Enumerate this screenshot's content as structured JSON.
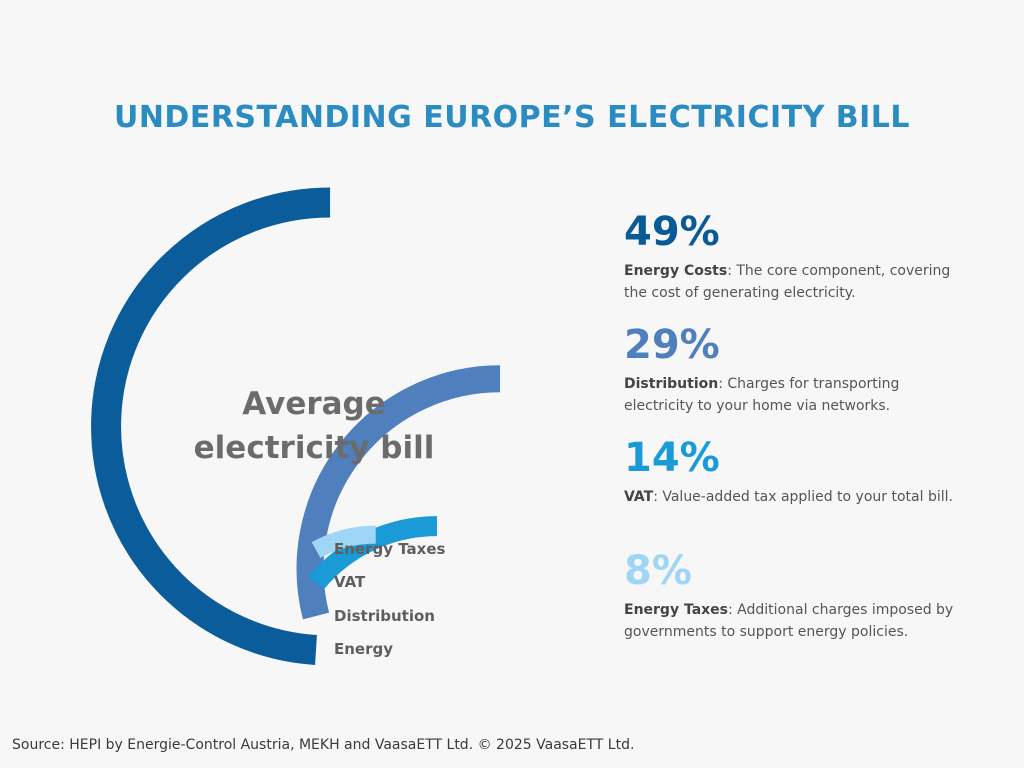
{
  "title": "UNDERSTANDING EUROPE’S ELECTRICITY BILL",
  "center_label": {
    "line1": "Average",
    "line2": "electricity bill"
  },
  "chart_data": {
    "type": "pie",
    "title": "",
    "categories": [
      "Energy",
      "Distribution",
      "VAT",
      "Energy Taxes"
    ],
    "values": [
      49,
      29,
      14,
      8
    ],
    "unit": "%",
    "colors": [
      "#0b5c9b",
      "#4f7fbd",
      "#1a9ad6",
      "#9fd6f5"
    ]
  },
  "stats": [
    {
      "value": "49%",
      "name": "Energy Costs",
      "text": ": The core component, covering the cost of generating electricity.",
      "color": "#0a5a96"
    },
    {
      "value": "29%",
      "name": "Distribution",
      "text": ": Charges for transporting electricity to your home via networks.",
      "color": "#4f7fbd"
    },
    {
      "value": "14%",
      "name": "VAT",
      "text": ": Value-added tax applied to your total bill.",
      "color": "#1a9ad6"
    },
    {
      "value": "8%",
      "name": "Energy Taxes",
      "text": ": Additional charges imposed by governments to support energy policies.",
      "color": "#9fd6f5"
    }
  ],
  "source": "Source: HEPI by Energie-Control Austria, MEKH and VaasaETT Ltd. © 2025 VaasaETT Ltd."
}
